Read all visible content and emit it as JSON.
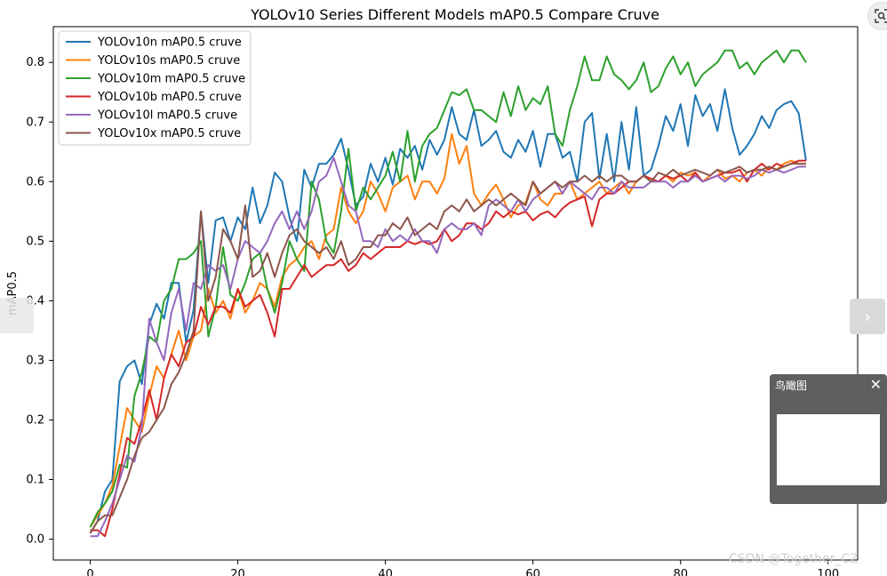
{
  "chart_data": {
    "type": "line",
    "title": "YOLOv10 Series Different Models mAP0.5 Compare Cruve",
    "xlabel": "",
    "ylabel": "mAP0.5",
    "xlim": [
      -5,
      104
    ],
    "ylim": [
      -0.035,
      0.86
    ],
    "xticks": [
      0,
      20,
      40,
      60,
      80,
      100
    ],
    "yticks": [
      0.0,
      0.1,
      0.2,
      0.3,
      0.4,
      0.5,
      0.6,
      0.7,
      0.8
    ],
    "legend_position": "top-left",
    "grid": false,
    "series": [
      {
        "name": "YOLOv10n mAP0.5 cruve",
        "color": "#1f77b4",
        "values": [
          0.01,
          0.03,
          0.08,
          0.1,
          0.265,
          0.29,
          0.3,
          0.26,
          0.36,
          0.395,
          0.37,
          0.43,
          0.43,
          0.33,
          0.385,
          0.55,
          0.43,
          0.535,
          0.54,
          0.5,
          0.54,
          0.52,
          0.59,
          0.53,
          0.56,
          0.615,
          0.6,
          0.54,
          0.5,
          0.62,
          0.59,
          0.63,
          0.63,
          0.645,
          0.672,
          0.62,
          0.56,
          0.575,
          0.63,
          0.6,
          0.64,
          0.595,
          0.655,
          0.64,
          0.66,
          0.62,
          0.67,
          0.645,
          0.67,
          0.725,
          0.68,
          0.67,
          0.72,
          0.66,
          0.67,
          0.685,
          0.65,
          0.64,
          0.67,
          0.65,
          0.685,
          0.625,
          0.68,
          0.68,
          0.64,
          0.65,
          0.6,
          0.7,
          0.715,
          0.605,
          0.68,
          0.6,
          0.7,
          0.62,
          0.725,
          0.61,
          0.62,
          0.66,
          0.71,
          0.685,
          0.73,
          0.66,
          0.745,
          0.71,
          0.73,
          0.685,
          0.755,
          0.69,
          0.645,
          0.66,
          0.68,
          0.71,
          0.69,
          0.72,
          0.73,
          0.735,
          0.715,
          0.635
        ]
      },
      {
        "name": "YOLOv10s mAP0.5 cruve",
        "color": "#ff7f0e",
        "values": [
          0.02,
          0.04,
          0.06,
          0.09,
          0.155,
          0.22,
          0.2,
          0.18,
          0.24,
          0.29,
          0.27,
          0.31,
          0.35,
          0.3,
          0.34,
          0.35,
          0.42,
          0.38,
          0.4,
          0.37,
          0.42,
          0.38,
          0.4,
          0.43,
          0.42,
          0.39,
          0.44,
          0.46,
          0.47,
          0.49,
          0.5,
          0.47,
          0.51,
          0.52,
          0.59,
          0.55,
          0.53,
          0.55,
          0.6,
          0.58,
          0.55,
          0.59,
          0.6,
          0.61,
          0.57,
          0.6,
          0.6,
          0.58,
          0.605,
          0.68,
          0.63,
          0.66,
          0.58,
          0.56,
          0.58,
          0.595,
          0.57,
          0.54,
          0.56,
          0.565,
          0.6,
          0.57,
          0.56,
          0.58,
          0.58,
          0.6,
          0.57,
          0.58,
          0.59,
          0.6,
          0.58,
          0.59,
          0.6,
          0.58,
          0.6,
          0.61,
          0.6,
          0.6,
          0.61,
          0.6,
          0.615,
          0.61,
          0.615,
          0.6,
          0.61,
          0.62,
          0.605,
          0.61,
          0.6,
          0.615,
          0.62,
          0.61,
          0.625,
          0.62,
          0.63,
          0.635,
          0.63,
          0.63
        ]
      },
      {
        "name": "YOLOv10m mAP0.5 cruve",
        "color": "#2ca02c",
        "values": [
          0.02,
          0.045,
          0.06,
          0.08,
          0.125,
          0.12,
          0.24,
          0.28,
          0.34,
          0.33,
          0.4,
          0.42,
          0.47,
          0.47,
          0.48,
          0.5,
          0.34,
          0.39,
          0.49,
          0.41,
          0.4,
          0.43,
          0.47,
          0.48,
          0.42,
          0.38,
          0.43,
          0.5,
          0.47,
          0.45,
          0.6,
          0.57,
          0.5,
          0.48,
          0.55,
          0.655,
          0.55,
          0.59,
          0.57,
          0.59,
          0.61,
          0.65,
          0.6,
          0.685,
          0.6,
          0.66,
          0.68,
          0.69,
          0.72,
          0.75,
          0.745,
          0.755,
          0.72,
          0.72,
          0.71,
          0.7,
          0.75,
          0.71,
          0.76,
          0.72,
          0.74,
          0.73,
          0.76,
          0.68,
          0.66,
          0.72,
          0.76,
          0.81,
          0.77,
          0.77,
          0.81,
          0.78,
          0.77,
          0.755,
          0.77,
          0.8,
          0.75,
          0.76,
          0.79,
          0.81,
          0.78,
          0.8,
          0.76,
          0.78,
          0.79,
          0.8,
          0.82,
          0.82,
          0.79,
          0.8,
          0.78,
          0.8,
          0.81,
          0.82,
          0.8,
          0.82,
          0.82,
          0.8
        ]
      },
      {
        "name": "YOLOv10b mAP0.5 cruve",
        "color": "#d62728",
        "values": [
          0.015,
          0.015,
          0.005,
          0.05,
          0.11,
          0.17,
          0.16,
          0.2,
          0.25,
          0.2,
          0.27,
          0.31,
          0.29,
          0.33,
          0.34,
          0.39,
          0.36,
          0.39,
          0.39,
          0.38,
          0.42,
          0.39,
          0.4,
          0.41,
          0.38,
          0.34,
          0.42,
          0.42,
          0.44,
          0.46,
          0.44,
          0.45,
          0.46,
          0.46,
          0.47,
          0.45,
          0.46,
          0.48,
          0.47,
          0.48,
          0.49,
          0.49,
          0.49,
          0.5,
          0.495,
          0.5,
          0.495,
          0.5,
          0.52,
          0.5,
          0.51,
          0.53,
          0.53,
          0.52,
          0.53,
          0.55,
          0.54,
          0.55,
          0.545,
          0.55,
          0.535,
          0.545,
          0.55,
          0.54,
          0.555,
          0.565,
          0.57,
          0.575,
          0.525,
          0.57,
          0.58,
          0.58,
          0.59,
          0.6,
          0.6,
          0.61,
          0.605,
          0.6,
          0.61,
          0.605,
          0.61,
          0.6,
          0.615,
          0.6,
          0.605,
          0.61,
          0.615,
          0.615,
          0.62,
          0.6,
          0.62,
          0.63,
          0.62,
          0.63,
          0.625,
          0.63,
          0.635,
          0.635
        ]
      },
      {
        "name": "YOLOv10l mAP0.5 cruve",
        "color": "#9467bd",
        "values": [
          0.005,
          0.005,
          0.03,
          0.06,
          0.1,
          0.14,
          0.13,
          0.19,
          0.37,
          0.33,
          0.3,
          0.38,
          0.42,
          0.35,
          0.43,
          0.42,
          0.46,
          0.45,
          0.46,
          0.42,
          0.47,
          0.5,
          0.49,
          0.48,
          0.5,
          0.53,
          0.55,
          0.52,
          0.55,
          0.52,
          0.55,
          0.6,
          0.61,
          0.64,
          0.6,
          0.56,
          0.55,
          0.5,
          0.5,
          0.49,
          0.52,
          0.5,
          0.51,
          0.5,
          0.52,
          0.5,
          0.5,
          0.48,
          0.52,
          0.53,
          0.52,
          0.52,
          0.53,
          0.51,
          0.56,
          0.57,
          0.56,
          0.55,
          0.57,
          0.55,
          0.57,
          0.58,
          0.59,
          0.6,
          0.58,
          0.6,
          0.59,
          0.58,
          0.57,
          0.59,
          0.59,
          0.58,
          0.6,
          0.59,
          0.59,
          0.59,
          0.6,
          0.6,
          0.6,
          0.59,
          0.6,
          0.6,
          0.61,
          0.6,
          0.605,
          0.61,
          0.6,
          0.61,
          0.61,
          0.605,
          0.61,
          0.62,
          0.615,
          0.62,
          0.615,
          0.62,
          0.625,
          0.625
        ]
      },
      {
        "name": "YOLOv10x mAP0.5 cruve",
        "color": "#8c564b",
        "values": [
          0.01,
          0.03,
          0.04,
          0.04,
          0.07,
          0.1,
          0.14,
          0.17,
          0.18,
          0.2,
          0.22,
          0.26,
          0.28,
          0.31,
          0.35,
          0.55,
          0.4,
          0.44,
          0.52,
          0.5,
          0.47,
          0.56,
          0.44,
          0.45,
          0.48,
          0.44,
          0.48,
          0.51,
          0.52,
          0.5,
          0.49,
          0.48,
          0.49,
          0.47,
          0.5,
          0.46,
          0.47,
          0.49,
          0.49,
          0.51,
          0.51,
          0.53,
          0.52,
          0.54,
          0.51,
          0.52,
          0.53,
          0.52,
          0.55,
          0.56,
          0.55,
          0.57,
          0.55,
          0.56,
          0.57,
          0.56,
          0.57,
          0.58,
          0.57,
          0.56,
          0.6,
          0.58,
          0.59,
          0.6,
          0.59,
          0.6,
          0.6,
          0.61,
          0.6,
          0.61,
          0.6,
          0.61,
          0.61,
          0.6,
          0.6,
          0.61,
          0.6,
          0.615,
          0.61,
          0.62,
          0.61,
          0.615,
          0.62,
          0.615,
          0.61,
          0.62,
          0.615,
          0.62,
          0.625,
          0.615,
          0.62,
          0.62,
          0.625,
          0.62,
          0.625,
          0.63,
          0.63,
          0.63
        ]
      }
    ]
  },
  "birdseye": {
    "title": "鸟瞰图",
    "close": "✕"
  },
  "watermark": "CSDN @Together_CZ",
  "nav": {
    "next": "›"
  },
  "colors": {
    "axis": "#000000",
    "background": "#ffffff"
  }
}
